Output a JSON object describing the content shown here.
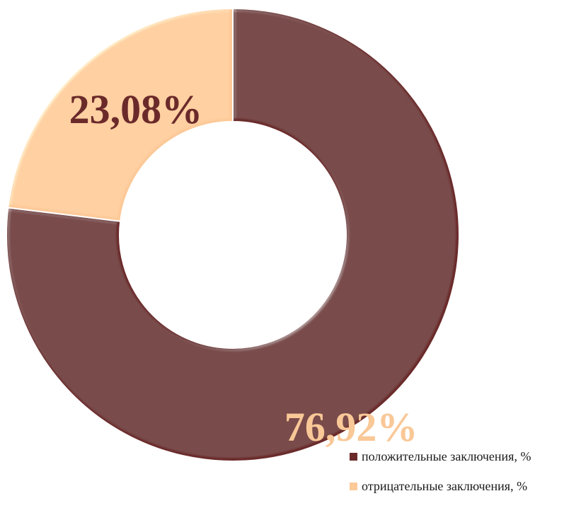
{
  "chart_data": {
    "type": "pie",
    "style": "donut",
    "series": [
      {
        "name": "положительные заключения, %",
        "value": 76.92,
        "label": "76,92%",
        "color": "#6b2a2a",
        "label_color": "#f9c897"
      },
      {
        "name": "отрицательные заключения, %",
        "value": 23.08,
        "label": "23,08%",
        "color": "#fcc998",
        "label_color": "#6b2a2a"
      }
    ],
    "start_angle_deg": 0,
    "direction": "clockwise",
    "legend_position": "bottom-right"
  }
}
